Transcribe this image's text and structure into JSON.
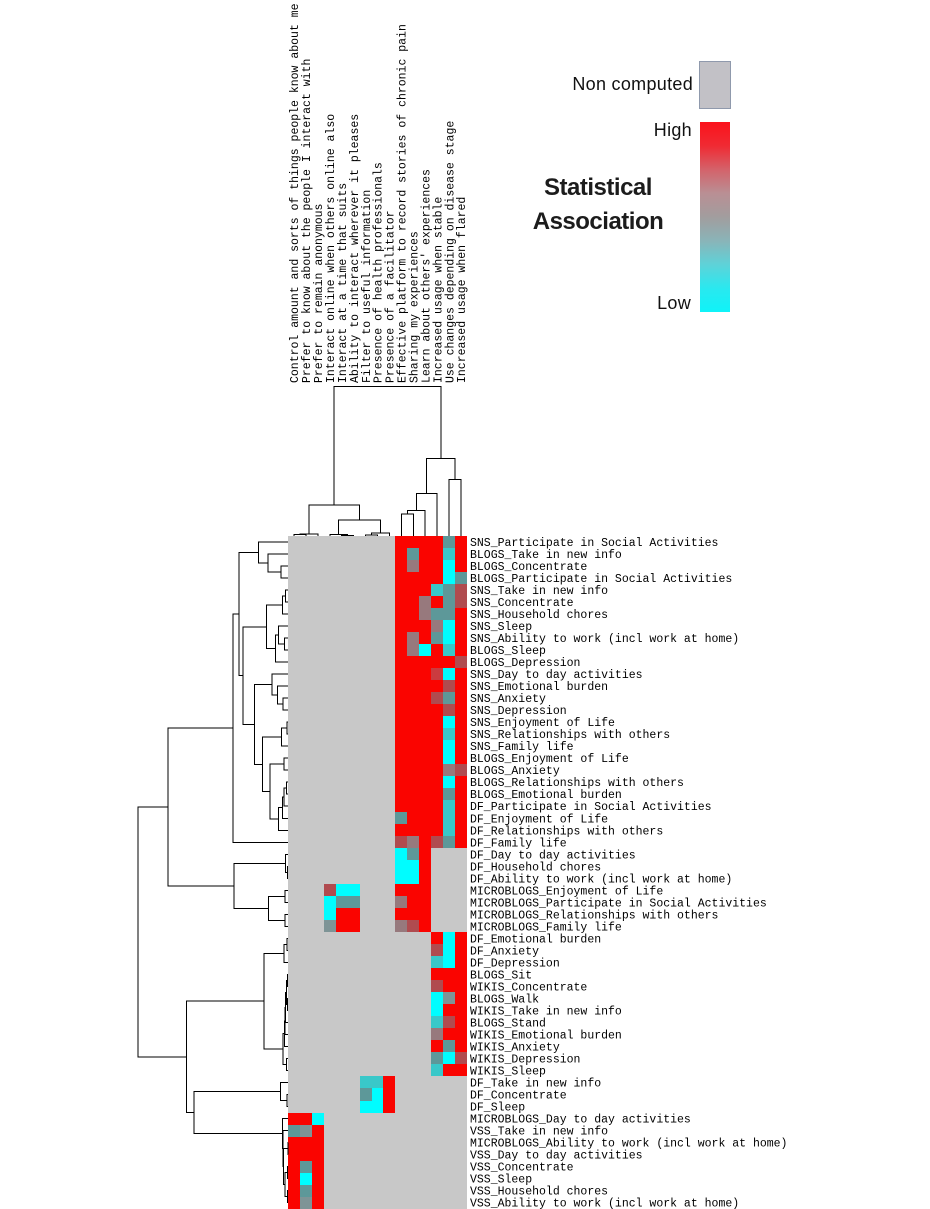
{
  "legend": {
    "non_computed": "Non computed",
    "high": "High",
    "low": "Low",
    "title_line1": "Statistical",
    "title_line2": "Association"
  },
  "palette": {
    "G": "#c8c8c8",
    "R": "#fa0400",
    "C": "#00fdff",
    "r": "#b04b4f",
    "p": "#cb3b3f",
    "w": "#97797d",
    "m": "#7e9496",
    "c": "#5d9899",
    "t": "#39c8c9"
  },
  "colorbar_gradient": [
    "#fb121c",
    "#f02a33",
    "#d4626a",
    "#b98f94",
    "#a29d9e",
    "#8ab4b8",
    "#5ed2d8",
    "#2ae8ef",
    "#0ff3f8"
  ],
  "non_computed_swatch_color": "#c2c1c6",
  "chart_data": {
    "type": "heatmap",
    "title": "Statistical Association clustermap",
    "columns": [
      "Control amount and sorts of things people know about me",
      "Prefer to know about the people I interact with",
      "Prefer to remain anonymous",
      "Interact online when others online also",
      "Interact at a time that suits",
      "Ability to interact wherever it pleases",
      "Filter to useful information",
      "Presence of health professionals",
      "Presence of a facilitator",
      "Effective platform to record stories of chronic pain",
      "Sharing my experiences",
      "Learn about others' experiences",
      "Increased usage when stable",
      "Use changes depending on disease stage",
      "Increased usage when flared"
    ],
    "rows": [
      "SNS_Participate in Social Activities",
      "BLOGS_Take in new info",
      "BLOGS_Concentrate",
      "BLOGS_Participate in Social Activities",
      "SNS_Take in new info",
      "SNS_Concentrate",
      "SNS_Household chores",
      "SNS_Sleep",
      "SNS_Ability to work (incl work at home)",
      "BLOGS_Sleep",
      "BLOGS_Depression",
      "SNS_Day to day activities",
      "SNS_Emotional burden",
      "SNS_Anxiety",
      "SNS_Depression",
      "SNS_Enjoyment of Life",
      "SNS_Relationships with others",
      "SNS_Family life",
      "BLOGS_Enjoyment of Life",
      "BLOGS_Anxiety",
      "BLOGS_Relationships with others",
      "BLOGS_Emotional burden",
      "DF_Participate in Social Activities",
      "DF_Enjoyment of Life",
      "DF_Relationships with others",
      "DF_Family life",
      "DF_Day to day activities",
      "DF_Household chores",
      "DF_Ability to work (incl work at home)",
      "MICROBLOGS_Enjoyment of Life",
      "MICROBLOGS_Participate in Social Activities",
      "MICROBLOGS_Relationships with others",
      "MICROBLOGS_Family life",
      "DF_Emotional burden",
      "DF_Anxiety",
      "DF_Depression",
      "BLOGS_Sit",
      "WIKIS_Concentrate",
      "BLOGS_Walk",
      "WIKIS_Take in new info",
      "BLOGS_Stand",
      "WIKIS_Emotional burden",
      "WIKIS_Anxiety",
      "WIKIS_Depression",
      "WIKIS_Sleep",
      "DF_Take in new info",
      "DF_Concentrate",
      "DF_Sleep",
      "MICROBLOGS_Day to day activities",
      "VSS_Take in new info",
      "MICROBLOGS_Ability to work (incl work at home)",
      "VSS_Day to day activities",
      "VSS_Concentrate",
      "VSS_Sleep",
      "VSS_Household chores",
      "VSS_Ability to work (incl work at home)"
    ],
    "matrix": [
      "GGGGGGGGGRRRRcR",
      "GGGGGGGGGRcRRtR",
      "GGGGGGGGGRwRRCR",
      "GGGGGGGGGRRRRCc",
      "GGGGGGGGGRRRtcr",
      "GGGGGGGGGRRwRcr",
      "GGGGGGGGGRRwccR",
      "GGGGGGGGGRRRwCR",
      "GGGGGGGGGRwRcCR",
      "GGGGGGGGGRwCRtR",
      "GGGGGGGGGRRRRRr",
      "GGGGGGGGGRRRpCR",
      "GGGGGGGGGRRRRrR",
      "GGGGGGGGGRRRrcR",
      "GGGGGGGGGRRRRrR",
      "GGGGGGGGGRRRRCR",
      "GGGGGGGGGRRRRtR",
      "GGGGGGGGGRRRRCR",
      "GGGGGGGGGRRRRCR",
      "GGGGGGGGGRRRRwr",
      "GGGGGGGGGRRRRCR",
      "GGGGGGGGGRRRRcR",
      "GGGGGGGGGRRRRtR",
      "GGGGGGGGGcRRRtR",
      "GGGGGGGGGRRRRtR",
      "GGGGGGGGGrwRrcR",
      "GGGGGGGGGCcRGGG",
      "GGGGGGGGGCCRGGG",
      "GGGGGGGGGCCRGGG",
      "GGGrCCGGGRRRGGG",
      "GGGCccGGGwRRGGG",
      "GGGCRRGGGRRRGGG",
      "GGGmRRGGGwrRGGG",
      "GGGGGGGGGGGGRCR",
      "GGGGGGGGGGGGrCR",
      "GGGGGGGGGGGGtCR",
      "GGGGGGGGGGGGRRR",
      "GGGGGGGGGGGGrRR",
      "GGGGGGGGGGGGCmR",
      "GGGGGGGGGGGGCRR",
      "GGGGGGGGGGGGtrR",
      "GGGGGGGGGGGGwRR",
      "GGGGGGGGGGGGRcR",
      "GGGGGGGGGGGGcCr",
      "GGGGGGGGGGGGtRR",
      "GGGGGGttRGGGGGG",
      "GGGGGGcCRGGGGGG",
      "GGGGGGCCRGGGGGG",
      "RRCGGGGGGGGGGGG",
      "cmRGGGGGGGGGGGG",
      "RRRGGGGGGGGGGGG",
      "RRRGGGGGGGGGGGG",
      "RcRGGGGGGGGGGGG",
      "RCRGGGGGGGGGGGG",
      "RcRGGGGGGGGGGGG",
      "RmRGGGGGGGGGGGG"
    ],
    "value_classes": {
      "G": "non computed",
      "R": "high association",
      "p": "high (slightly muted)",
      "r": "moderately high",
      "w": "mid, warm leaning",
      "m": "mid",
      "c": "mid-low (slate teal)",
      "t": "low-mid (teal)",
      "C": "low association"
    },
    "row_linkage": [
      [
        [
          [
            [
              1,
              [
                2,
                [
                  3,
                  4,
                  281.1
                ],
                268.0
              ],
              258.3
            ],
            [
              [
                [
                  [
                    5,
                    6,
                    285.4
                  ],
                  7,
                  282.3
                ],
                [
                  [
                    8,
                    [
                      9,
                      10,
                      284.3
                    ],
                    278.5
                  ],
                  11,
                  275.4
                ],
                266.3
              ],
              [
                [
                  12,
                  [
                    13,
                    [
                      14,
                      15,
                      283.2
                    ],
                    277.3
                  ],
                  272.0
                ],
                [
                  [
                    [
                      16,
                      17,
                      287.1
                    ],
                    18,
                    281.5
                  ],
                  [
                    [
                      19,
                      20,
                      284.2
                    ],
                    [
                      [
                        [
                          [
                            21,
                            22,
                            286.5
                          ],
                          23,
                          284.2
                        ],
                        24,
                        282.4
                      ],
                      25,
                      278.3
                    ],
                    270.1
                  ],
                  262.6
                ],
                254.6
              ],
              242.9
            ],
            238.9
          ],
          26,
          232.8
        ],
        [
          [
            27,
            [
              28,
              29,
              287.3
            ],
            285.6
          ],
          [
            [
              30,
              31,
              284.9
            ],
            [
              32,
              33,
              284.9
            ],
            268.6
          ],
          234.0
        ],
        168.1
      ],
      [
        [
          [
            [
              34,
              35,
              286.8
            ],
            36,
            283.8
          ],
          [
            [
              [
                [
                  [
                    [
                      37,
                      38,
                      287.5
                    ],
                    [
                      39,
                      40,
                      287.5
                    ],
                    286.3
                  ],
                  41,
                  285.6
                ],
                42,
                285.0
              ],
              43,
              284.5
            ],
            [
              44,
              45,
              286.5
            ],
            283.0
          ],
          264.1
        ],
        [
          [
            46,
            [
              47,
              48,
              287.2
            ],
            280.6
          ],
          [
            49,
            [
              50,
              [
                [
                  51,
                  52,
                  287.8
                ],
                [
                  [
                    53,
                    54,
                    287.6
                  ],
                  [
                    55,
                    56,
                    287.5
                  ],
                  284.8
                ],
                283.6
              ],
              283.0
            ],
            282.4
          ],
          193.9
        ],
        186.7
      ],
      138.2
    ],
    "col_linkage": [
      [
        [
          [
            1,
            2,
            534.5
          ],
          3,
          533.8
        ],
        [
          [
            4,
            [
              5,
              6,
              535.5
            ],
            534.7
          ],
          [
            [
              7,
              8,
              534.8
            ],
            9,
            533.2
          ],
          520.0
        ],
        505.2
      ],
      [
        [
          [
            [
              10,
              11,
              514.2
            ],
            12,
            510.7
          ],
          13,
          493.5
        ],
        [
          14,
          15,
          479.3
        ],
        458.4
      ],
      386.5
    ],
    "legend_position": "top-right",
    "grid": "off"
  }
}
